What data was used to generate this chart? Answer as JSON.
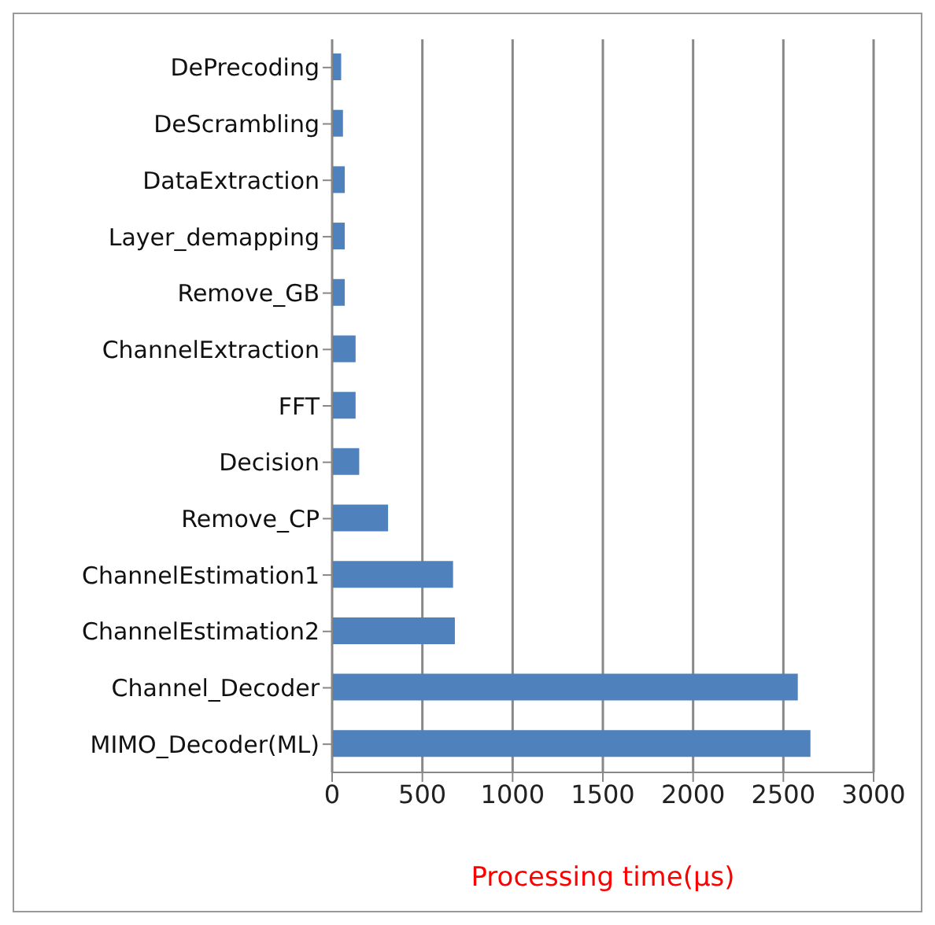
{
  "chart_data": {
    "type": "bar",
    "orientation": "horizontal",
    "xlabel": "Processing time(μs)",
    "categories": [
      "DePrecoding",
      "DeScrambling",
      "DataExtraction",
      "Layer_demapping",
      "Remove_GB",
      "ChannelExtraction",
      "FFT",
      "Decision",
      "Remove_CP",
      "ChannelEstimation1",
      "ChannelEstimation2",
      "Channel_Decoder",
      "MIMO_Decoder(ML)"
    ],
    "values": [
      50,
      60,
      70,
      70,
      70,
      130,
      130,
      150,
      310,
      670,
      680,
      2580,
      2650
    ],
    "color": "#4f81bd",
    "xlim": [
      0,
      3000
    ],
    "xticks": [
      0,
      500,
      1000,
      1500,
      2000,
      2500,
      3000
    ],
    "grid": "x"
  }
}
